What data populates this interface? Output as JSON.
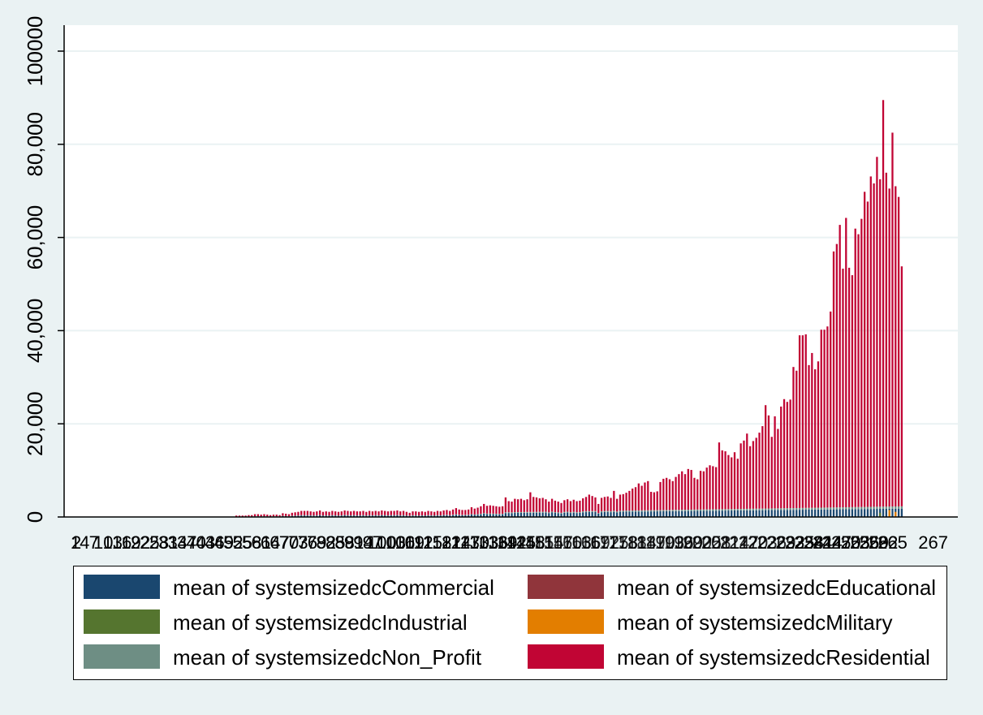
{
  "chart_data": {
    "type": "bar",
    "stacked": true,
    "title": "",
    "xlabel": "",
    "ylabel": "",
    "ylim": [
      0,
      105000
    ],
    "yticks": [
      0,
      20000,
      40000,
      60000,
      80000,
      100000
    ],
    "ytick_labels": [
      "0",
      "20,000",
      "40,000",
      "60,000",
      "80,000",
      "100000"
    ],
    "x_first_label": "2",
    "x_last_label": "267",
    "x_tick_labels_legible": false,
    "grid": true,
    "legend_position": "bottom",
    "n_bars": 267,
    "series": [
      {
        "name": "mean of systemsizedcCommercial",
        "color": "#1a476f"
      },
      {
        "name": "mean of systemsizedcEducational",
        "color": "#90353b"
      },
      {
        "name": "mean of systemsizedcIndustrial",
        "color": "#55752f"
      },
      {
        "name": "mean of systemsizedcMilitary",
        "color": "#e37e00"
      },
      {
        "name": "mean of systemsizedcNon_Profit",
        "color": "#6e8e84"
      },
      {
        "name": "mean of systemsizedcResidential",
        "color": "#c10534"
      }
    ],
    "bars_visible_from": 52,
    "total_heights": [
      300,
      300,
      300,
      300,
      400,
      400,
      600,
      600,
      500,
      600,
      500,
      400,
      500,
      500,
      400,
      800,
      700,
      600,
      900,
      1000,
      1100,
      1300,
      1300,
      1300,
      1200,
      1100,
      1200,
      1400,
      1100,
      1200,
      1100,
      1300,
      1200,
      1100,
      1200,
      1400,
      1300,
      1200,
      1300,
      1200,
      1200,
      1300,
      1100,
      1300,
      1200,
      1300,
      1200,
      1400,
      1300,
      1200,
      1300,
      1300,
      1400,
      1200,
      1300,
      1100,
      900,
      1200,
      1200,
      1100,
      1200,
      1100,
      1300,
      1200,
      1100,
      1300,
      1200,
      1400,
      1500,
      1300,
      1600,
      1900,
      1600,
      1500,
      1500,
      1600,
      2100,
      1800,
      2000,
      2300,
      2800,
      2400,
      2500,
      2400,
      2300,
      2200,
      2300,
      4200,
      3400,
      3300,
      3900,
      3800,
      3900,
      3600,
      3800,
      5300,
      4300,
      4200,
      4000,
      4100,
      3800,
      3300,
      3900,
      3500,
      3300,
      3000,
      3600,
      3800,
      3400,
      3700,
      3400,
      3500,
      4000,
      4300,
      4800,
      4500,
      4200,
      2800,
      4100,
      4300,
      4400,
      4100,
      5600,
      3900,
      4800,
      4900,
      5200,
      5600,
      6100,
      6400,
      7200,
      6700,
      7400,
      7700,
      5400,
      5300,
      5500,
      7500,
      8200,
      8400,
      8100,
      7700,
      8600,
      9200,
      9800,
      9200,
      10300,
      10100,
      8400,
      8100,
      9900,
      9800,
      10600,
      11100,
      10900,
      10700,
      16000,
      14300,
      14100,
      13300,
      12800,
      13900,
      12500,
      15800,
      16400,
      17900,
      15200,
      16300,
      17000,
      18100,
      19500,
      24000,
      21800,
      17200,
      21600,
      18900,
      23700,
      25300,
      24700,
      25200,
      32200,
      31400,
      39000,
      39000,
      39200,
      32600,
      35200,
      31700,
      33400,
      40200,
      40200,
      40900,
      44100,
      57000,
      58600,
      62700,
      53300,
      64200,
      53500,
      51900,
      61900,
      60700,
      64000,
      69800,
      67700,
      73100,
      71600,
      77300,
      72500,
      89500,
      73900,
      70500,
      82500,
      71000,
      68700,
      53800
    ]
  }
}
